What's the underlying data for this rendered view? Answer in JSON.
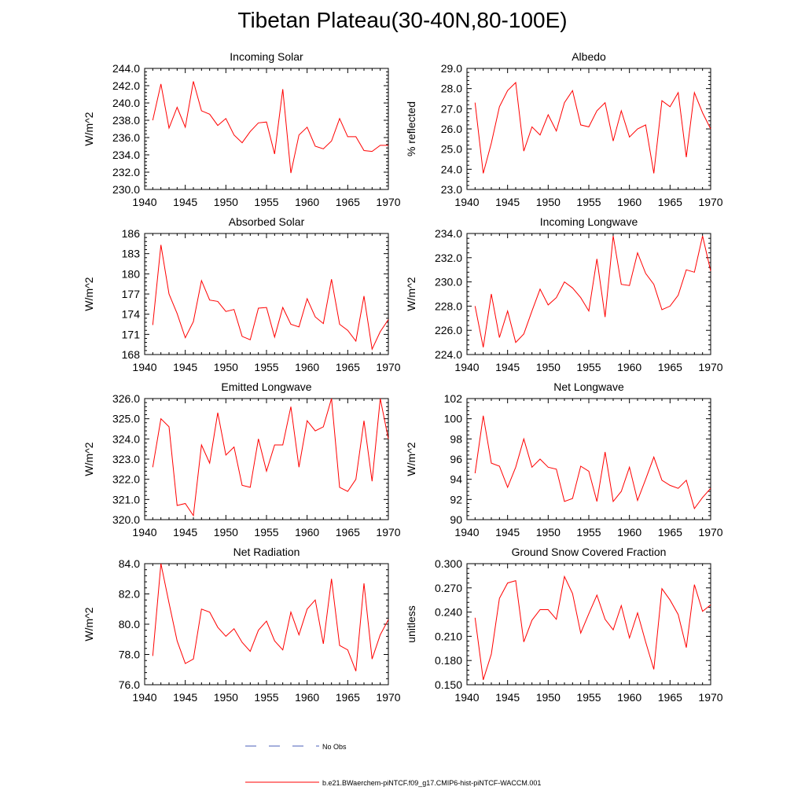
{
  "title": "Tibetan Plateau(30-40N,80-100E)",
  "legend": {
    "obs_label": "No Obs",
    "obs_color": "#4a5fb8",
    "model_label": "b.e21.BWaerchem-piNTCF.f09_g17.CMIP6-hist-piNTCF-WACCM.001",
    "model_color": "#ff0000"
  },
  "years": [
    1941,
    1942,
    1943,
    1944,
    1945,
    1946,
    1947,
    1948,
    1949,
    1950,
    1951,
    1952,
    1953,
    1954,
    1955,
    1956,
    1957,
    1958,
    1959,
    1960,
    1961,
    1962,
    1963,
    1964,
    1965,
    1966,
    1967,
    1968,
    1969,
    1970
  ],
  "chart_data": [
    {
      "type": "line",
      "title": "Incoming Solar",
      "ylabel": "W/m^2",
      "xlim": [
        1940,
        1970
      ],
      "ylim": [
        230.0,
        244.0
      ],
      "xticks": [
        1940,
        1945,
        1950,
        1955,
        1960,
        1965,
        1970
      ],
      "yticks": [
        "230.0",
        "232.0",
        "234.0",
        "236.0",
        "238.0",
        "240.0",
        "242.0",
        "244.0"
      ],
      "series": [
        {
          "values": [
            238.0,
            242.2,
            237.1,
            239.5,
            237.2,
            242.5,
            239.1,
            238.7,
            237.4,
            238.2,
            236.3,
            235.4,
            236.7,
            237.7,
            237.8,
            234.1,
            241.6,
            231.9,
            236.3,
            237.2,
            235.0,
            234.7,
            235.6,
            238.2,
            236.1,
            236.1,
            234.5,
            234.4,
            235.1,
            235.1
          ]
        }
      ]
    },
    {
      "type": "line",
      "title": "Albedo",
      "ylabel": "% reflected",
      "xlim": [
        1940,
        1970
      ],
      "ylim": [
        23.0,
        29.0
      ],
      "xticks": [
        1940,
        1945,
        1950,
        1955,
        1960,
        1965,
        1970
      ],
      "yticks": [
        "23.0",
        "24.0",
        "25.0",
        "26.0",
        "27.0",
        "28.0",
        "29.0"
      ],
      "series": [
        {
          "values": [
            27.3,
            23.8,
            25.3,
            27.1,
            27.9,
            28.3,
            24.9,
            26.1,
            25.7,
            26.7,
            25.9,
            27.3,
            27.9,
            26.2,
            26.1,
            26.9,
            27.3,
            25.4,
            26.9,
            25.6,
            26.0,
            26.2,
            23.8,
            27.4,
            27.1,
            27.8,
            24.6,
            27.8,
            26.8,
            26.0
          ]
        }
      ]
    },
    {
      "type": "line",
      "title": "Absorbed Solar",
      "ylabel": "W/m^2",
      "xlim": [
        1940,
        1970
      ],
      "ylim": [
        168,
        186
      ],
      "xticks": [
        1940,
        1945,
        1950,
        1955,
        1960,
        1965,
        1970
      ],
      "yticks": [
        "168",
        "171",
        "174",
        "177",
        "180",
        "183",
        "186"
      ],
      "series": [
        {
          "values": [
            172.4,
            184.3,
            177.0,
            174.1,
            170.5,
            172.9,
            179.0,
            176.1,
            175.9,
            174.4,
            174.7,
            170.7,
            170.2,
            174.9,
            175.0,
            170.6,
            175.0,
            172.5,
            172.1,
            176.3,
            173.6,
            172.6,
            179.2,
            172.5,
            171.6,
            170.0,
            176.7,
            168.8,
            171.4,
            173.2
          ]
        }
      ]
    },
    {
      "type": "line",
      "title": "Incoming Longwave",
      "ylabel": "W/m^2",
      "xlim": [
        1940,
        1970
      ],
      "ylim": [
        224.0,
        234.0
      ],
      "xticks": [
        1940,
        1945,
        1950,
        1955,
        1960,
        1965,
        1970
      ],
      "yticks": [
        "224.0",
        "226.0",
        "228.0",
        "230.0",
        "232.0",
        "234.0"
      ],
      "series": [
        {
          "values": [
            228.0,
            224.6,
            229.0,
            225.4,
            227.6,
            225.0,
            225.7,
            227.6,
            229.4,
            228.1,
            228.7,
            230.0,
            229.5,
            228.7,
            227.6,
            231.9,
            227.1,
            233.8,
            229.8,
            229.7,
            232.4,
            230.7,
            229.8,
            227.7,
            228.0,
            228.9,
            231.0,
            230.8,
            233.8,
            230.9
          ]
        }
      ]
    },
    {
      "type": "line",
      "title": "Emitted Longwave",
      "ylabel": "W/m^2",
      "xlim": [
        1940,
        1970
      ],
      "ylim": [
        320.0,
        326.0
      ],
      "xticks": [
        1940,
        1945,
        1950,
        1955,
        1960,
        1965,
        1970
      ],
      "yticks": [
        "320.0",
        "321.0",
        "322.0",
        "323.0",
        "324.0",
        "325.0",
        "326.0"
      ],
      "series": [
        {
          "values": [
            322.6,
            325.0,
            324.6,
            320.7,
            320.8,
            320.2,
            323.7,
            322.8,
            325.3,
            323.2,
            323.6,
            321.7,
            321.6,
            324.0,
            322.4,
            323.7,
            323.7,
            325.6,
            322.6,
            324.9,
            324.4,
            324.6,
            326.0,
            321.6,
            321.4,
            322.0,
            324.9,
            321.9,
            326.0,
            324.0
          ]
        }
      ]
    },
    {
      "type": "line",
      "title": "Net Longwave",
      "ylabel": "W/m^2",
      "xlim": [
        1940,
        1970
      ],
      "ylim": [
        90,
        102
      ],
      "xticks": [
        1940,
        1945,
        1950,
        1955,
        1960,
        1965,
        1970
      ],
      "yticks": [
        "90",
        "92",
        "94",
        "96",
        "98",
        "100",
        "102"
      ],
      "series": [
        {
          "values": [
            94.6,
            100.3,
            95.6,
            95.3,
            93.2,
            95.2,
            98.0,
            95.2,
            96.0,
            95.2,
            95.0,
            91.8,
            92.1,
            95.3,
            94.8,
            91.8,
            96.7,
            91.8,
            92.8,
            95.2,
            91.9,
            94.0,
            96.2,
            93.9,
            93.4,
            93.1,
            93.9,
            91.1,
            92.2,
            93.1
          ]
        }
      ]
    },
    {
      "type": "line",
      "title": "Net Radiation",
      "ylabel": "W/m^2",
      "xlim": [
        1940,
        1970
      ],
      "ylim": [
        76.0,
        84.0
      ],
      "xticks": [
        1940,
        1945,
        1950,
        1955,
        1960,
        1965,
        1970
      ],
      "yticks": [
        "76.0",
        "78.0",
        "80.0",
        "82.0",
        "84.0"
      ],
      "series": [
        {
          "values": [
            77.9,
            84.0,
            81.4,
            78.9,
            77.4,
            77.7,
            81.0,
            80.8,
            79.8,
            79.2,
            79.7,
            78.8,
            78.2,
            79.6,
            80.2,
            78.9,
            78.3,
            80.8,
            79.3,
            81.0,
            81.6,
            78.7,
            83.0,
            78.6,
            78.3,
            76.9,
            82.7,
            77.7,
            79.3,
            80.3
          ]
        }
      ]
    },
    {
      "type": "line",
      "title": "Ground Snow Covered Fraction",
      "ylabel": "unitless",
      "xlim": [
        1940,
        1970
      ],
      "ylim": [
        0.15,
        0.3
      ],
      "xticks": [
        1940,
        1945,
        1950,
        1955,
        1960,
        1965,
        1970
      ],
      "yticks": [
        "0.150",
        "0.180",
        "0.210",
        "0.240",
        "0.270",
        "0.300"
      ],
      "series": [
        {
          "values": [
            0.233,
            0.156,
            0.188,
            0.257,
            0.276,
            0.279,
            0.203,
            0.23,
            0.243,
            0.243,
            0.231,
            0.284,
            0.263,
            0.214,
            0.238,
            0.261,
            0.231,
            0.218,
            0.248,
            0.208,
            0.239,
            0.203,
            0.169,
            0.269,
            0.255,
            0.237,
            0.196,
            0.274,
            0.241,
            0.249
          ]
        }
      ]
    }
  ]
}
